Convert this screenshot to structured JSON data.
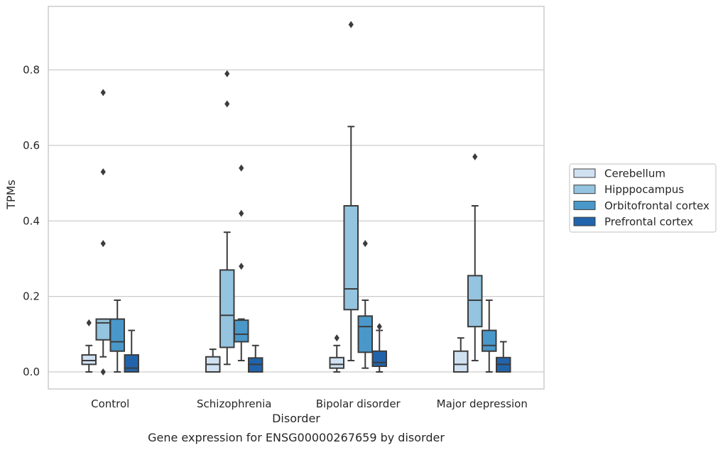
{
  "chart_data": {
    "type": "box",
    "title": "",
    "caption": "Gene expression for ENSG00000267659 by disorder",
    "xlabel": "Disorder",
    "ylabel": "TPMs",
    "ylim": [
      -0.045,
      0.97
    ],
    "yticks": [
      "0.0",
      "0.2",
      "0.4",
      "0.6",
      "0.8"
    ],
    "ytick_values": [
      0.0,
      0.2,
      0.4,
      0.6,
      0.8
    ],
    "grid": "horizontal",
    "legend_position": "right",
    "categories": [
      "Control",
      "Schizophrenia",
      "Bipolar disorder",
      "Major depression"
    ],
    "series": [
      {
        "name": "Cerebellum",
        "color": "#d0e1f2",
        "boxes": [
          {
            "whislo": 0.0,
            "q1": 0.02,
            "med": 0.03,
            "q3": 0.045,
            "whishi": 0.07,
            "fliers": [
              0.13
            ]
          },
          {
            "whislo": 0.0,
            "q1": 0.0,
            "med": 0.02,
            "q3": 0.04,
            "whishi": 0.06,
            "fliers": []
          },
          {
            "whislo": 0.0,
            "q1": 0.01,
            "med": 0.02,
            "q3": 0.038,
            "whishi": 0.07,
            "fliers": [
              0.09
            ]
          },
          {
            "whislo": 0.0,
            "q1": 0.0,
            "med": 0.02,
            "q3": 0.055,
            "whishi": 0.09,
            "fliers": []
          }
        ]
      },
      {
        "name": "Hipppocampus",
        "color": "#94c4df",
        "boxes": [
          {
            "whislo": 0.04,
            "q1": 0.085,
            "med": 0.13,
            "q3": 0.14,
            "whishi": 0.14,
            "fliers": [
              0.74,
              0.53,
              0.34,
              0.0
            ]
          },
          {
            "whislo": 0.02,
            "q1": 0.065,
            "med": 0.15,
            "q3": 0.27,
            "whishi": 0.37,
            "fliers": [
              0.79,
              0.71
            ]
          },
          {
            "whislo": 0.03,
            "q1": 0.165,
            "med": 0.22,
            "q3": 0.44,
            "whishi": 0.65,
            "fliers": [
              0.92
            ]
          },
          {
            "whislo": 0.03,
            "q1": 0.12,
            "med": 0.19,
            "q3": 0.255,
            "whishi": 0.44,
            "fliers": [
              0.57
            ]
          }
        ]
      },
      {
        "name": "Orbitofrontal cortex",
        "color": "#4a98c9",
        "boxes": [
          {
            "whislo": 0.0,
            "q1": 0.055,
            "med": 0.08,
            "q3": 0.14,
            "whishi": 0.19,
            "fliers": []
          },
          {
            "whislo": 0.03,
            "q1": 0.08,
            "med": 0.1,
            "q3": 0.137,
            "whishi": 0.14,
            "fliers": [
              0.54,
              0.42,
              0.28
            ]
          },
          {
            "whislo": 0.01,
            "q1": 0.052,
            "med": 0.12,
            "q3": 0.148,
            "whishi": 0.19,
            "fliers": [
              0.34
            ]
          },
          {
            "whislo": 0.0,
            "q1": 0.055,
            "med": 0.07,
            "q3": 0.11,
            "whishi": 0.19,
            "fliers": []
          }
        ]
      },
      {
        "name": "Prefrontal cortex",
        "color": "#2164ab",
        "boxes": [
          {
            "whislo": 0.0,
            "q1": 0.0,
            "med": 0.01,
            "q3": 0.045,
            "whishi": 0.11,
            "fliers": []
          },
          {
            "whislo": 0.0,
            "q1": 0.0,
            "med": 0.02,
            "q3": 0.037,
            "whishi": 0.07,
            "fliers": []
          },
          {
            "whislo": 0.0,
            "q1": 0.015,
            "med": 0.025,
            "q3": 0.055,
            "whishi": 0.11,
            "fliers": [
              0.12
            ]
          },
          {
            "whislo": 0.0,
            "q1": 0.0,
            "med": 0.02,
            "q3": 0.038,
            "whishi": 0.08,
            "fliers": []
          }
        ]
      }
    ]
  }
}
